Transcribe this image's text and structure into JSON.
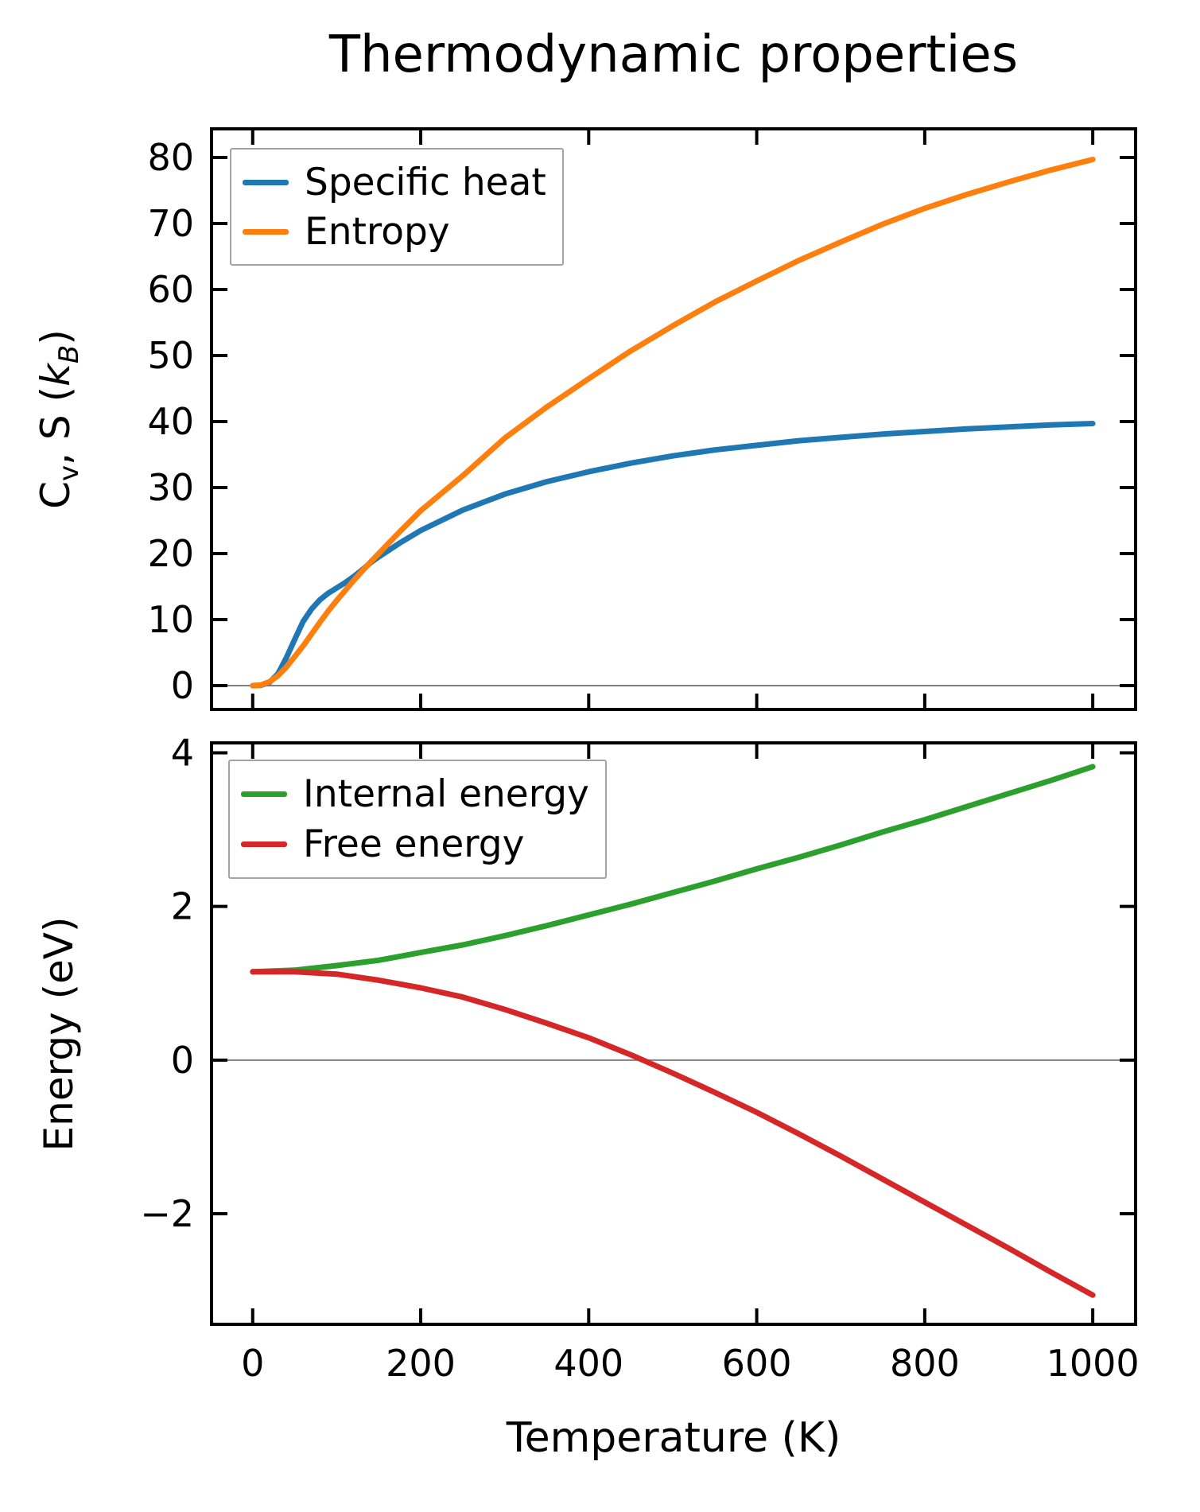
{
  "figure": {
    "title": "Thermodynamic properties"
  },
  "colors": {
    "specific_heat": "#1f77b4",
    "entropy": "#ff7f0e",
    "internal_energy": "#2ca02c",
    "free_energy": "#d62728",
    "zero_line": "#808080",
    "spine": "#000000",
    "legend_border": "#a3a3a3",
    "text": "#000000"
  },
  "chart_data": [
    {
      "type": "line",
      "panel": "top",
      "ylabel": "Cv, S (kB)",
      "ylabel_parts": [
        "C",
        "v",
        ", S (",
        "k",
        "B",
        ")"
      ],
      "xlim": [
        -49,
        1051
      ],
      "ylim": [
        -3.61,
        84.34
      ],
      "xticks": [
        0,
        200,
        400,
        600,
        800,
        1000
      ],
      "xticklabels": [],
      "yticks": [
        0,
        10,
        20,
        30,
        40,
        50,
        60,
        70,
        80
      ],
      "yticklabels": [
        "0",
        "10",
        "20",
        "30",
        "40",
        "50",
        "60",
        "70",
        "80"
      ],
      "grid": false,
      "zero_line": true,
      "legend_position": "upper left",
      "series": [
        {
          "name": "Specific heat",
          "color": "#1f77b4",
          "x": [
            0,
            10,
            20,
            30,
            40,
            50,
            60,
            70,
            80,
            90,
            100,
            110,
            120,
            130,
            140,
            150,
            175,
            200,
            250,
            300,
            350,
            400,
            450,
            500,
            550,
            600,
            650,
            700,
            750,
            800,
            850,
            900,
            950,
            1000
          ],
          "y": [
            0,
            0.05,
            0.5,
            1.8,
            4.2,
            7,
            9.7,
            11.6,
            13,
            14,
            14.8,
            15.6,
            16.5,
            17.5,
            18.6,
            19.5,
            21.6,
            23.5,
            26.6,
            29,
            30.9,
            32.4,
            33.7,
            34.8,
            35.7,
            36.4,
            37.1,
            37.6,
            38.1,
            38.5,
            38.9,
            39.2,
            39.5,
            39.7
          ]
        },
        {
          "name": "Entropy",
          "color": "#ff7f0e",
          "x": [
            0,
            10,
            20,
            30,
            40,
            50,
            60,
            70,
            80,
            90,
            100,
            110,
            120,
            130,
            140,
            150,
            175,
            200,
            250,
            300,
            350,
            400,
            450,
            500,
            550,
            600,
            650,
            700,
            750,
            800,
            850,
            900,
            950,
            1000
          ],
          "y": [
            0,
            0.1,
            0.6,
            1.5,
            2.8,
            4.4,
            6.0,
            7.8,
            9.6,
            11.3,
            12.9,
            14.4,
            15.9,
            17.3,
            18.7,
            20.0,
            23.3,
            26.5,
            31.8,
            37.5,
            42.2,
            46.5,
            50.7,
            54.5,
            58.1,
            61.3,
            64.4,
            67.2,
            69.9,
            72.3,
            74.4,
            76.3,
            78.1,
            79.7
          ]
        }
      ]
    },
    {
      "type": "line",
      "panel": "bottom",
      "xlabel": "Temperature (K)",
      "ylabel": "Energy (eV)",
      "xlim": [
        -49,
        1051
      ],
      "ylim": [
        -3.44,
        4.13
      ],
      "xticks": [
        0,
        200,
        400,
        600,
        800,
        1000
      ],
      "xticklabels": [
        "0",
        "200",
        "400",
        "600",
        "800",
        "1000"
      ],
      "yticks": [
        -2,
        0,
        2,
        4
      ],
      "yticklabels": [
        "−2",
        "0",
        "2",
        "4"
      ],
      "grid": false,
      "zero_line": true,
      "legend_position": "upper left",
      "series": [
        {
          "name": "Internal energy",
          "color": "#2ca02c",
          "x": [
            0,
            50,
            100,
            150,
            200,
            250,
            300,
            350,
            400,
            450,
            500,
            550,
            600,
            650,
            700,
            750,
            800,
            850,
            900,
            950,
            1000
          ],
          "y": [
            1.15,
            1.17,
            1.23,
            1.3,
            1.4,
            1.5,
            1.62,
            1.75,
            1.89,
            2.03,
            2.18,
            2.33,
            2.49,
            2.64,
            2.8,
            2.97,
            3.13,
            3.3,
            3.47,
            3.64,
            3.82
          ]
        },
        {
          "name": "Free energy",
          "color": "#d62728",
          "x": [
            0,
            50,
            100,
            150,
            200,
            250,
            300,
            350,
            400,
            450,
            500,
            550,
            600,
            650,
            700,
            750,
            800,
            850,
            900,
            950,
            1000
          ],
          "y": [
            1.15,
            1.15,
            1.12,
            1.04,
            0.94,
            0.82,
            0.66,
            0.48,
            0.29,
            0.07,
            -0.17,
            -0.42,
            -0.68,
            -0.96,
            -1.25,
            -1.55,
            -1.85,
            -2.15,
            -2.45,
            -2.76,
            -3.06
          ]
        }
      ]
    }
  ]
}
